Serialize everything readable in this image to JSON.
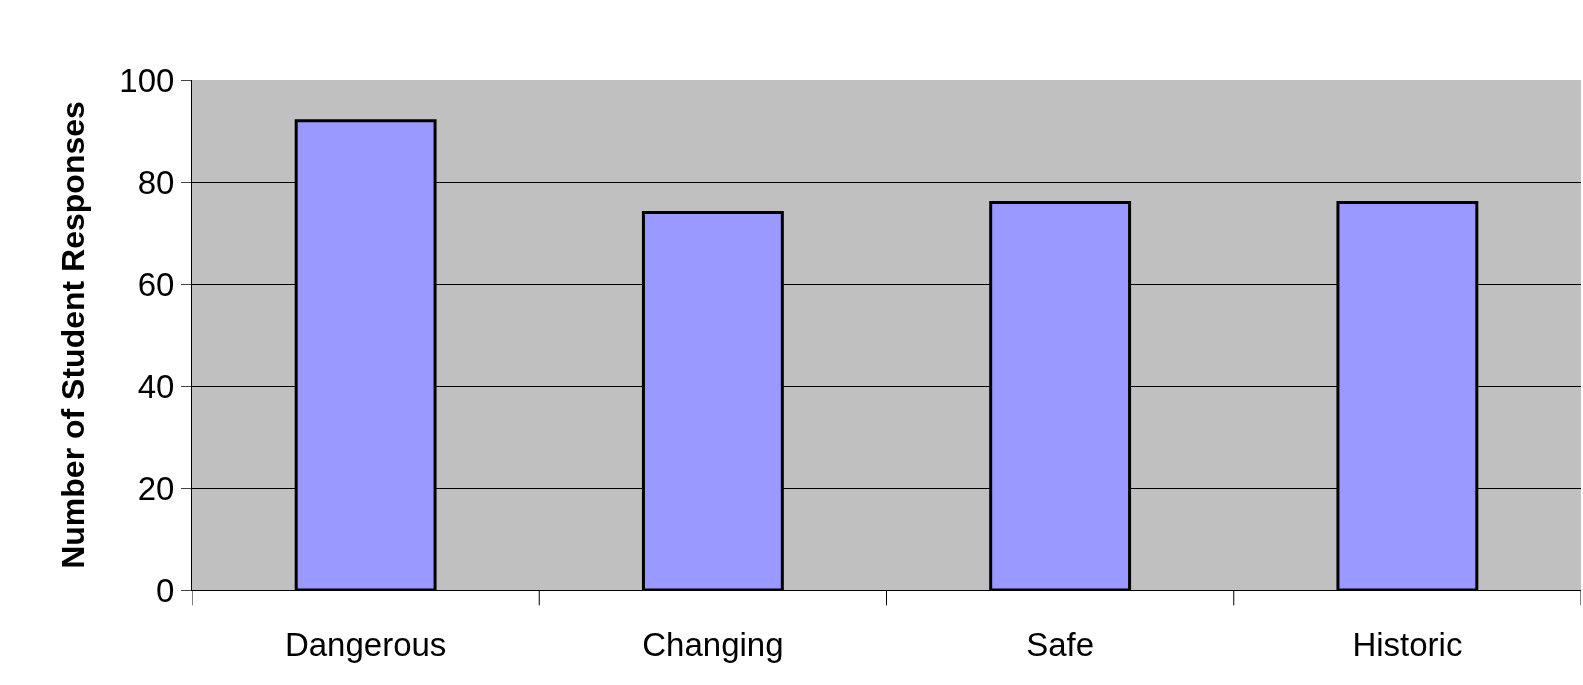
{
  "chart_data": {
    "type": "bar",
    "ylabel": "Number of Student Responses",
    "categories": [
      "Dangerous",
      "Changing",
      "Safe",
      "Historic"
    ],
    "values": [
      92,
      74,
      76,
      76
    ],
    "color": "#9999ff",
    "ylim": [
      0,
      100
    ],
    "yticks": [
      0,
      20,
      40,
      60,
      80,
      100
    ],
    "grid": "y"
  }
}
